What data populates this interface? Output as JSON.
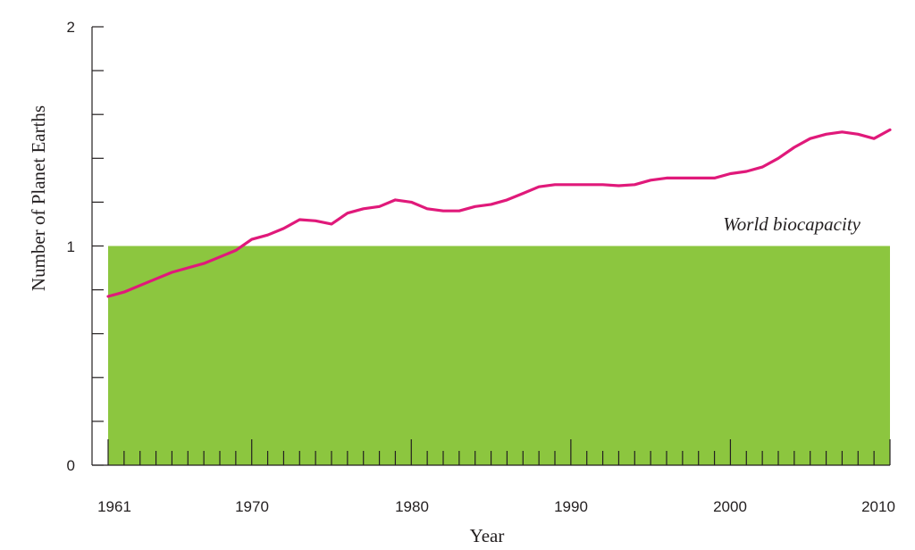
{
  "chart_data": {
    "type": "line",
    "xlabel": "Year",
    "ylabel": "Number of Planet Earths",
    "xlim": [
      1961,
      2010
    ],
    "ylim": [
      0,
      2
    ],
    "x_tick_labels": [
      "1961",
      "1970",
      "1980",
      "1990",
      "2000",
      "2010"
    ],
    "y_tick_labels": [
      "0",
      "1",
      "2"
    ],
    "grid": false,
    "colors": {
      "line": "#e0197a",
      "biocapacity": "#8cc63f",
      "axis": "#231f20"
    },
    "biocapacity": {
      "label": "World biocapacity",
      "value": 1.0
    },
    "series": [
      {
        "x": [
          1961,
          1962,
          1963,
          1964,
          1965,
          1966,
          1967,
          1968,
          1969,
          1970,
          1971,
          1972,
          1973,
          1974,
          1975,
          1976,
          1977,
          1978,
          1979,
          1980,
          1981,
          1982,
          1983,
          1984,
          1985,
          1986,
          1987,
          1988,
          1989,
          1990,
          1991,
          1992,
          1993,
          1994,
          1995,
          1996,
          1997,
          1998,
          1999,
          2000,
          2001,
          2002,
          2003,
          2004,
          2005,
          2006,
          2007,
          2008,
          2009,
          2010
        ],
        "y": [
          0.77,
          0.79,
          0.82,
          0.85,
          0.88,
          0.9,
          0.92,
          0.95,
          0.98,
          1.03,
          1.05,
          1.08,
          1.12,
          1.115,
          1.1,
          1.15,
          1.17,
          1.18,
          1.21,
          1.2,
          1.17,
          1.16,
          1.16,
          1.18,
          1.19,
          1.21,
          1.24,
          1.27,
          1.28,
          1.28,
          1.28,
          1.28,
          1.275,
          1.28,
          1.3,
          1.31,
          1.31,
          1.31,
          1.31,
          1.33,
          1.34,
          1.36,
          1.4,
          1.45,
          1.49,
          1.51,
          1.52,
          1.51,
          1.49,
          1.53
        ]
      }
    ]
  }
}
